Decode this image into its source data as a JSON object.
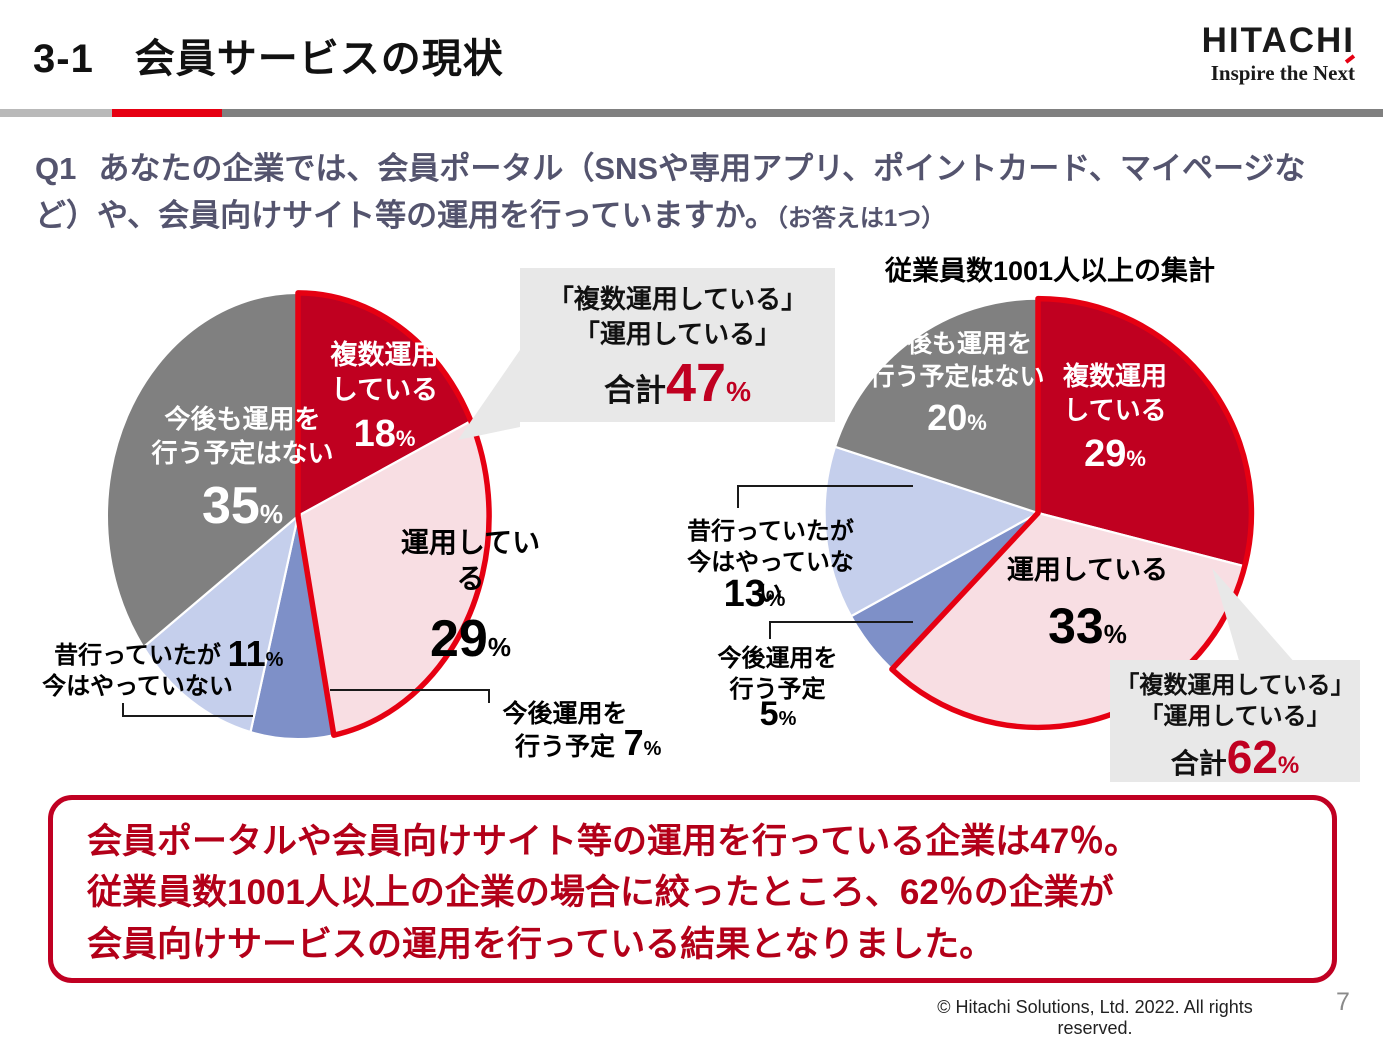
{
  "header": {
    "title": "3-1　会員サービスの現状",
    "logo": {
      "brand": "HITACHI",
      "tagline": "Inspire the Next"
    }
  },
  "question": {
    "q_label": "Q1",
    "text": "あなたの企業では、会員ポータル（SNSや専用アプリ、ポイントカード、マイページなど）や、会員向けサイト等の運用を行っていますか。",
    "note": "（お答えは1つ）"
  },
  "units": {
    "percent": "%"
  },
  "chart_data": [
    {
      "type": "pie",
      "title": "",
      "start_angle_deg": 0,
      "direction": "clockwise",
      "segments": [
        {
          "label": "複数運用している",
          "lines": [
            "複数運用",
            "している"
          ],
          "value": 18,
          "color": "#c00020"
        },
        {
          "label": "運用している",
          "lines": [
            "運用している"
          ],
          "value": 29,
          "color": "#f8dee3"
        },
        {
          "label": "今後運用を行う予定",
          "lines": [
            "今後運用を",
            "行う予定"
          ],
          "value": 7,
          "color": "#7e90c8"
        },
        {
          "label": "昔行っていたが今はやっていない",
          "lines": [
            "昔行っていたが",
            "今はやっていない"
          ],
          "value": 11,
          "color": "#c5cfec"
        },
        {
          "label": "今後も運用を行う予定はない",
          "lines": [
            "今後も運用を",
            "行う予定はない"
          ],
          "value": 35,
          "color": "#808080"
        }
      ],
      "highlight": {
        "labels": [
          "複数運用している",
          "運用している"
        ],
        "total": 47,
        "outline_color": "#e60012"
      }
    },
    {
      "type": "pie",
      "title": "従業員数1001人以上の集計",
      "start_angle_deg": 0,
      "direction": "clockwise",
      "segments": [
        {
          "label": "複数運用している",
          "lines": [
            "複数運用",
            "している"
          ],
          "value": 29,
          "color": "#c00020"
        },
        {
          "label": "運用している",
          "lines": [
            "運用している"
          ],
          "value": 33,
          "color": "#f8dee3"
        },
        {
          "label": "今後運用を行う予定",
          "lines": [
            "今後運用を",
            "行う予定"
          ],
          "value": 5,
          "color": "#7e90c8"
        },
        {
          "label": "昔行っていたが今はやっていない",
          "lines": [
            "昔行っていたが",
            "今はやっていない"
          ],
          "value": 13,
          "color": "#c5cfec"
        },
        {
          "label": "今後も運用を行う予定はない",
          "lines": [
            "今後も運用を",
            "行う予定はない"
          ],
          "value": 20,
          "color": "#808080"
        }
      ],
      "highlight": {
        "labels": [
          "複数運用している",
          "運用している"
        ],
        "total": 62,
        "outline_color": "#e60012"
      }
    }
  ],
  "callout": {
    "line1": "「複数運用している」",
    "line2": "「運用している」",
    "total_label": "合計"
  },
  "summary": {
    "lines": [
      "会員ポータルや会員向けサイト等の運用を行っている企業は47％。",
      "従業員数1001人以上の企業の場合に絞ったところ、62％の企業が",
      "会員向けサービスの運用を行っている結果となりました。"
    ]
  },
  "footer": {
    "copyright": "© Hitachi Solutions, Ltd. 2022. All rights reserved.",
    "page": "7"
  }
}
